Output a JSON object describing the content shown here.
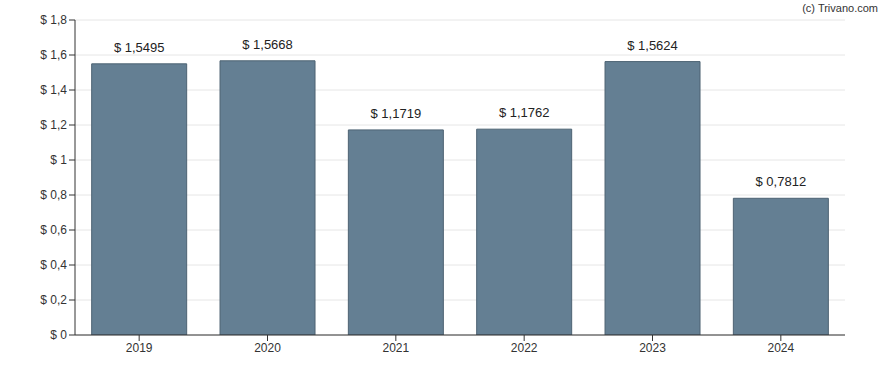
{
  "chart_data": {
    "type": "bar",
    "categories": [
      "2019",
      "2020",
      "2021",
      "2022",
      "2023",
      "2024"
    ],
    "values": [
      1.5495,
      1.5668,
      1.1719,
      1.1762,
      1.5624,
      0.7812
    ],
    "value_labels": [
      "$ 1,5495",
      "$ 1,5668",
      "$ 1,1719",
      "$ 1,1762",
      "$ 1,5624",
      "$ 0,7812"
    ],
    "color": "#647f93",
    "ylim": [
      0,
      1.8
    ],
    "yticks": [
      {
        "value": 0,
        "label": "$ 0"
      },
      {
        "value": 0.2,
        "label": "$ 0,2"
      },
      {
        "value": 0.4,
        "label": "$ 0,4"
      },
      {
        "value": 0.6,
        "label": "$ 0,6"
      },
      {
        "value": 0.8,
        "label": "$ 0,8"
      },
      {
        "value": 1,
        "label": "$ 1"
      },
      {
        "value": 1.2,
        "label": "$ 1,2"
      },
      {
        "value": 1.4,
        "label": "$ 1,4"
      },
      {
        "value": 1.6,
        "label": "$ 1,6"
      },
      {
        "value": 1.8,
        "label": "$ 1,8"
      }
    ],
    "grid": true,
    "data_labels": true,
    "annotations": [
      "(c) Trivano.com"
    ]
  }
}
